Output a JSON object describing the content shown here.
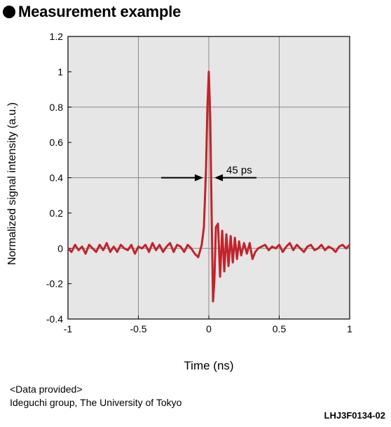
{
  "heading": "Measurement example",
  "colors": {
    "plot_bg": "#e6e6e6",
    "line": "#c0242c",
    "grid": "#8a8a8a",
    "annotation": "#000000"
  },
  "chart_data": {
    "type": "line",
    "title": "",
    "xlabel": "Time (ns)",
    "ylabel": "Normalized signal intensity (a.u.)",
    "xlim": [
      -1,
      1
    ],
    "ylim": [
      -0.4,
      1.2
    ],
    "x_ticks": [
      -1,
      -0.5,
      0,
      0.5,
      1
    ],
    "x_tick_labels": [
      "-1",
      "-0.5",
      "0",
      "0.5",
      "1"
    ],
    "y_ticks": [
      -0.4,
      -0.2,
      0,
      0.2,
      0.4,
      0.6,
      0.8,
      1,
      1.2
    ],
    "y_tick_labels": [
      "-0.4",
      "-0.2",
      "0",
      "0.2",
      "0.4",
      "0.6",
      "0.8",
      "1",
      "1.2"
    ],
    "grid": true,
    "series": [
      {
        "x": [
          -1.0,
          -0.975,
          -0.95,
          -0.925,
          -0.9,
          -0.875,
          -0.85,
          -0.825,
          -0.8,
          -0.775,
          -0.75,
          -0.725,
          -0.7,
          -0.675,
          -0.65,
          -0.625,
          -0.6,
          -0.575,
          -0.55,
          -0.525,
          -0.5,
          -0.475,
          -0.45,
          -0.425,
          -0.4,
          -0.375,
          -0.35,
          -0.325,
          -0.3,
          -0.275,
          -0.25,
          -0.225,
          -0.2,
          -0.175,
          -0.15,
          -0.125,
          -0.1,
          -0.075,
          -0.05,
          -0.035,
          -0.02,
          -0.01,
          0.0,
          0.01,
          0.02,
          0.03,
          0.04,
          0.05,
          0.065,
          0.08,
          0.095,
          0.11,
          0.125,
          0.14,
          0.155,
          0.17,
          0.185,
          0.2,
          0.215,
          0.23,
          0.25,
          0.27,
          0.29,
          0.31,
          0.33,
          0.35,
          0.375,
          0.4,
          0.425,
          0.45,
          0.475,
          0.5,
          0.525,
          0.55,
          0.575,
          0.6,
          0.625,
          0.65,
          0.675,
          0.7,
          0.725,
          0.75,
          0.775,
          0.8,
          0.825,
          0.85,
          0.875,
          0.9,
          0.925,
          0.95,
          0.975,
          1.0
        ],
        "y": [
          0.0,
          -0.02,
          0.02,
          -0.01,
          0.01,
          -0.03,
          0.02,
          0.0,
          -0.02,
          0.02,
          -0.01,
          0.03,
          -0.02,
          0.01,
          -0.02,
          0.02,
          0.0,
          -0.01,
          0.02,
          -0.03,
          0.01,
          0.0,
          0.02,
          -0.02,
          0.03,
          -0.01,
          0.02,
          -0.02,
          0.01,
          0.03,
          -0.02,
          0.02,
          0.01,
          -0.02,
          0.02,
          0.0,
          -0.03,
          -0.05,
          0.02,
          0.12,
          0.45,
          0.8,
          1.0,
          0.75,
          0.2,
          -0.3,
          -0.18,
          0.12,
          0.14,
          -0.16,
          0.1,
          -0.13,
          0.08,
          -0.1,
          0.07,
          -0.08,
          0.06,
          -0.06,
          0.04,
          -0.04,
          0.03,
          -0.03,
          0.03,
          -0.06,
          -0.02,
          0.0,
          0.01,
          0.02,
          -0.01,
          0.01,
          0.0,
          0.02,
          -0.02,
          0.01,
          0.03,
          -0.01,
          0.02,
          0.0,
          -0.02,
          0.01,
          0.02,
          -0.01,
          0.0,
          0.02,
          -0.01,
          0.01,
          0.0,
          -0.02,
          0.01,
          0.02,
          0.0,
          0.02
        ]
      }
    ],
    "annotations": [
      {
        "text": "45 ps",
        "x1": -0.04,
        "x2": 0.04,
        "y": 0.4
      }
    ]
  },
  "credit": {
    "line1": "<Data provided>",
    "line2": "Ideguchi group, The University of Tokyo"
  },
  "figure_code": "LHJ3F0134-02"
}
